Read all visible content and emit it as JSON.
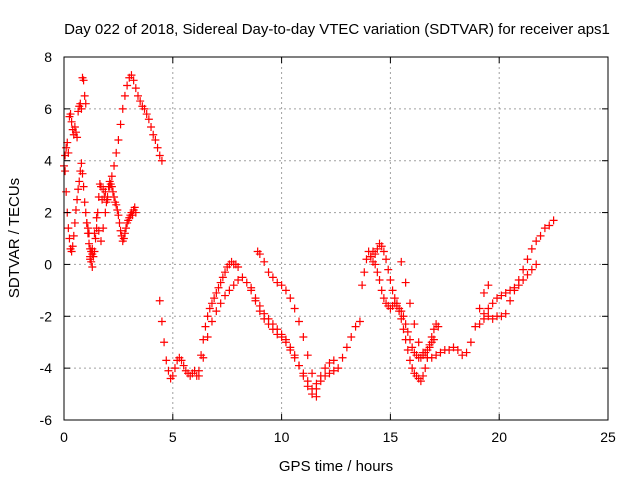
{
  "chart_data": {
    "type": "scatter",
    "title": "Day 022 of 2018, Sidereal Day-to-day VTEC variation (SDTVAR) for receiver aps1",
    "xlabel": "GPS time / hours",
    "ylabel": "SDTVAR / TECUs",
    "xlim": [
      0,
      25
    ],
    "ylim": [
      -6,
      8
    ],
    "xticks": [
      0,
      5,
      10,
      15,
      20,
      25
    ],
    "yticks": [
      -6,
      -4,
      -2,
      0,
      2,
      4,
      6,
      8
    ],
    "xtick_labels": [
      "0",
      "5",
      "10",
      "15",
      "20",
      "25"
    ],
    "ytick_labels": [
      "-6",
      "-4",
      "-2",
      "0",
      "2",
      "4",
      "6",
      "8"
    ],
    "grid": true,
    "marker": "+",
    "color": "#ff0000",
    "series": [
      {
        "x": [
          0.0,
          0.05,
          0.1,
          0.15,
          0.2,
          0.25,
          0.3,
          0.35,
          0.4,
          0.45,
          0.5,
          0.55,
          0.6,
          0.65,
          0.7,
          0.75,
          0.8,
          0.85,
          0.9,
          0.95,
          1.0,
          1.05,
          1.1,
          1.15,
          1.2,
          1.25,
          1.3,
          1.35,
          1.4,
          1.45,
          1.5,
          1.55,
          1.6,
          1.65,
          1.7,
          1.75,
          1.8,
          1.85,
          1.9,
          1.95,
          2.0,
          2.05,
          2.1,
          2.15,
          2.2,
          2.25,
          2.3,
          2.35,
          2.4,
          2.45,
          2.5,
          2.55,
          2.6,
          2.65,
          2.7,
          2.75,
          2.8,
          2.85,
          2.9,
          2.95,
          3.0,
          3.05,
          3.1,
          3.15,
          3.2,
          3.25,
          3.3
        ],
        "y": [
          3.8,
          4.2,
          4.5,
          4.7,
          4.3,
          5.7,
          5.8,
          5.5,
          5.2,
          5.0,
          5.3,
          5.1,
          4.9,
          5.9,
          6.1,
          6.2,
          6.0,
          7.2,
          7.1,
          6.5,
          6.2,
          1.6,
          1.4,
          1.2,
          0.6,
          0.5,
          0.4,
          0.3,
          0.5,
          1.0,
          1.4,
          2.0,
          2.6,
          3.1,
          3.0,
          2.5,
          2.9,
          2.6,
          2.8,
          2.4,
          2.5,
          3.0,
          3.2,
          3.1,
          3.0,
          2.8,
          2.6,
          2.4,
          2.3,
          2.1,
          1.9,
          1.6,
          1.3,
          1.1,
          0.9,
          1.0,
          1.2,
          1.4,
          1.6,
          1.7,
          1.8,
          1.9,
          2.0,
          1.9,
          2.1,
          2.2,
          2.0
        ]
      },
      {
        "x": [
          0.05,
          0.1,
          0.15,
          0.2,
          0.25,
          0.3,
          0.35,
          0.4,
          0.45,
          0.5,
          0.55,
          0.6,
          0.65,
          0.7,
          0.75,
          0.8,
          0.85,
          0.9,
          0.95,
          1.0,
          1.05,
          1.1,
          1.15,
          1.2,
          1.25,
          1.3
        ],
        "y": [
          3.6,
          2.8,
          2.0,
          1.4,
          1.0,
          0.6,
          0.5,
          0.7,
          1.1,
          1.6,
          2.1,
          2.5,
          2.9,
          3.2,
          3.6,
          3.9,
          3.5,
          3.0,
          2.4,
          2.0,
          1.6,
          1.2,
          0.8,
          0.3,
          0.1,
          -0.1
        ]
      },
      {
        "x": [
          1.2,
          1.3,
          1.4,
          1.5,
          1.6,
          1.7,
          1.8,
          1.9,
          2.0,
          2.1,
          2.2,
          2.3,
          2.4,
          2.5,
          2.6,
          2.7,
          2.8,
          2.9,
          3.0,
          3.1,
          3.2,
          3.3,
          3.4,
          3.5,
          3.6,
          3.7,
          3.8,
          3.9,
          4.0,
          4.1,
          4.2,
          4.3,
          4.4,
          4.5
        ],
        "y": [
          0.2,
          0.6,
          1.2,
          1.8,
          1.3,
          0.9,
          1.4,
          2.0,
          2.6,
          3.0,
          3.4,
          3.8,
          4.3,
          4.8,
          5.4,
          6.0,
          6.5,
          6.9,
          7.2,
          7.3,
          7.1,
          6.8,
          6.5,
          6.3,
          6.1,
          6.0,
          5.8,
          5.6,
          5.3,
          5.0,
          4.8,
          4.5,
          4.2,
          4.0
        ]
      },
      {
        "x": [
          4.4,
          4.5,
          4.6,
          4.7,
          4.8,
          4.9,
          5.0,
          5.1,
          5.2,
          5.3,
          5.4,
          5.5,
          5.6,
          5.7,
          5.8,
          5.9,
          6.0,
          6.1,
          6.2,
          6.3,
          6.4,
          6.5,
          6.6,
          6.7,
          6.8,
          6.9,
          7.0,
          7.1,
          7.2,
          7.3,
          7.4,
          7.5,
          7.6,
          7.7,
          7.8,
          7.9,
          8.0
        ],
        "y": [
          -1.4,
          -2.2,
          -3.0,
          -3.7,
          -4.1,
          -4.4,
          -4.3,
          -4.0,
          -3.7,
          -3.6,
          -3.7,
          -3.9,
          -4.1,
          -4.2,
          -4.3,
          -4.2,
          -4.1,
          -4.3,
          -4.1,
          -3.5,
          -2.9,
          -2.4,
          -2.0,
          -1.7,
          -1.5,
          -1.3,
          -1.1,
          -0.9,
          -0.7,
          -0.5,
          -0.3,
          -0.1,
          0.0,
          0.1,
          0.0,
          0.0,
          -0.1
        ]
      },
      {
        "x": [
          6.2,
          6.4,
          6.6,
          6.8,
          7.0,
          7.2,
          7.4,
          7.6,
          7.8,
          8.0,
          8.2,
          8.4,
          8.6,
          8.8,
          9.0,
          9.2,
          9.4,
          9.6,
          9.8,
          10.0,
          10.2,
          10.4,
          10.6,
          10.8,
          11.0,
          11.2,
          11.4,
          11.6,
          11.8,
          12.0,
          12.2,
          12.4,
          12.6,
          12.8,
          13.0,
          13.2,
          13.4,
          13.6
        ],
        "y": [
          -4.3,
          -3.6,
          -2.8,
          -2.2,
          -1.8,
          -1.5,
          -1.2,
          -1.0,
          -0.8,
          -0.6,
          -0.5,
          -0.7,
          -1.0,
          -1.4,
          -1.8,
          -2.1,
          -2.3,
          -2.5,
          -2.7,
          -2.8,
          -2.9,
          -3.2,
          -3.5,
          -3.9,
          -4.3,
          -4.7,
          -5.0,
          -4.8,
          -4.5,
          -4.3,
          -4.2,
          -4.1,
          -4.0,
          -3.6,
          -3.2,
          -2.8,
          -2.4,
          -2.2
        ]
      },
      {
        "x": [
          8.9,
          9.0,
          9.2,
          9.4,
          9.6,
          9.8,
          10.0,
          10.2,
          10.4,
          10.6,
          10.8,
          11.0,
          11.2,
          11.4,
          11.6,
          11.8,
          12.0,
          12.2,
          12.4
        ],
        "y": [
          0.5,
          0.4,
          0.1,
          -0.3,
          -0.5,
          -0.7,
          -0.8,
          -1.0,
          -1.3,
          -1.7,
          -2.2,
          -2.8,
          -3.5,
          -4.2,
          -4.6,
          -4.3,
          -4.0,
          -3.8,
          -3.7
        ]
      },
      {
        "x": [
          8.6,
          8.8,
          9.0,
          9.2,
          9.4,
          9.6,
          9.8,
          10.0,
          10.2,
          10.4,
          10.6,
          10.8,
          11.0,
          11.2,
          11.4,
          11.6
        ],
        "y": [
          -0.9,
          -1.3,
          -1.6,
          -1.9,
          -2.1,
          -2.3,
          -2.5,
          -2.7,
          -3.0,
          -3.3,
          -3.6,
          -3.9,
          -4.2,
          -4.5,
          -4.8,
          -5.1
        ]
      },
      {
        "x": [
          13.7,
          13.8,
          13.9,
          14.0,
          14.1,
          14.2,
          14.3,
          14.4,
          14.5,
          14.6,
          14.7,
          14.8,
          14.9,
          15.0,
          15.1,
          15.2,
          15.3,
          15.4,
          15.5,
          15.6,
          15.7,
          15.8,
          15.9,
          16.0,
          16.1,
          16.2,
          16.3,
          16.4,
          16.5,
          16.6,
          16.7,
          16.8,
          16.9,
          17.0,
          17.1,
          17.2
        ],
        "y": [
          -0.8,
          -0.3,
          0.2,
          0.5,
          0.3,
          0.1,
          0.0,
          -0.3,
          -0.6,
          -1.0,
          -1.3,
          -1.5,
          -1.6,
          -1.7,
          -1.6,
          -1.5,
          -1.6,
          -1.8,
          -2.1,
          -2.5,
          -2.9,
          -3.3,
          -3.7,
          -4.0,
          -4.2,
          -4.3,
          -4.4,
          -4.5,
          -4.3,
          -4.0,
          -3.6,
          -3.2,
          -2.8,
          -2.5,
          -2.3,
          -2.4
        ]
      },
      {
        "x": [
          14.1,
          14.2,
          14.3,
          14.4,
          14.5,
          14.6,
          14.7,
          14.8,
          14.9,
          15.0,
          15.1,
          15.2,
          15.3,
          15.4,
          15.5,
          15.6,
          15.7,
          15.8,
          15.9,
          16.0,
          16.1,
          16.2,
          16.3,
          16.4,
          16.5,
          16.6,
          16.7,
          16.8,
          16.9,
          17.0
        ],
        "y": [
          0.3,
          0.5,
          0.4,
          0.6,
          0.8,
          0.7,
          0.5,
          0.2,
          -0.2,
          -0.6,
          -1.0,
          -1.3,
          -1.5,
          -1.7,
          -1.8,
          -2.0,
          -2.3,
          -2.6,
          -2.9,
          -3.2,
          -3.4,
          -3.5,
          -3.6,
          -3.6,
          -3.5,
          -3.4,
          -3.3,
          -3.1,
          -3.0,
          -2.9
        ]
      },
      {
        "x": [
          15.5,
          15.7,
          15.9,
          16.1,
          16.3,
          16.5,
          16.7,
          16.9,
          17.1,
          17.3,
          17.5,
          17.7,
          17.9,
          18.1,
          18.3,
          18.5,
          18.7,
          18.9,
          19.1,
          19.3,
          19.5
        ],
        "y": [
          0.1,
          -0.7,
          -1.5,
          -2.3,
          -3.0,
          -3.4,
          -3.6,
          -3.6,
          -3.5,
          -3.4,
          -3.3,
          -3.3,
          -3.2,
          -3.3,
          -3.5,
          -3.4,
          -3.0,
          -2.4,
          -1.7,
          -1.1,
          -0.8
        ]
      },
      {
        "x": [
          19.1,
          19.3,
          19.5,
          19.7,
          19.9,
          20.1,
          20.3,
          20.5,
          20.7,
          20.9,
          21.1,
          21.3,
          21.5,
          21.7,
          21.9,
          22.1,
          22.3,
          22.5
        ],
        "y": [
          -2.3,
          -2.1,
          -2.0,
          -2.1,
          -2.0,
          -2.0,
          -1.9,
          -1.4,
          -1.0,
          -0.6,
          -0.2,
          0.2,
          0.6,
          0.9,
          1.1,
          1.4,
          1.5,
          1.7
        ]
      },
      {
        "x": [
          19.3,
          19.5,
          19.7,
          19.9,
          20.1,
          20.3,
          20.5,
          20.7,
          20.9,
          21.1,
          21.3,
          21.5,
          21.7
        ],
        "y": [
          -1.9,
          -1.7,
          -1.5,
          -1.3,
          -1.2,
          -1.1,
          -1.0,
          -0.9,
          -0.8,
          -0.6,
          -0.4,
          -0.2,
          0.0
        ]
      }
    ]
  }
}
